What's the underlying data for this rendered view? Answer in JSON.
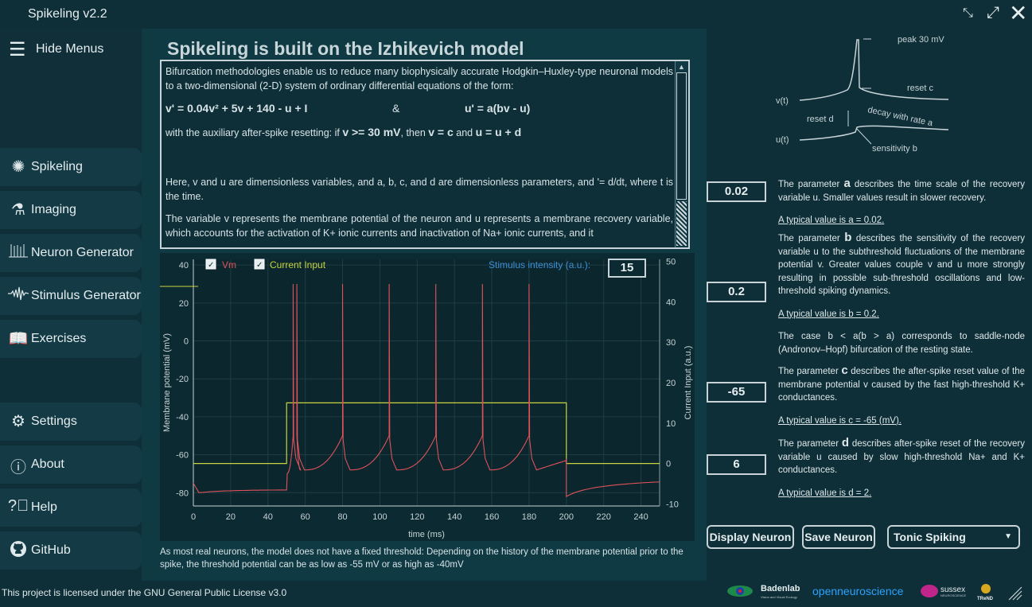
{
  "app": {
    "title": "Spikeling v2.2"
  },
  "sidebar": {
    "hide_menus": "Hide Menus",
    "items": [
      {
        "label": "Spikeling",
        "icon": "neuron-icon"
      },
      {
        "label": "Imaging",
        "icon": "microscope-icon"
      },
      {
        "label": "Neuron Generator",
        "icon": "spike-train-icon"
      },
      {
        "label": "Stimulus Generator",
        "icon": "waveform-icon"
      },
      {
        "label": "Exercises",
        "icon": "book-icon"
      },
      {
        "label": "Settings",
        "icon": "gear-icon"
      },
      {
        "label": "About",
        "icon": "info-icon"
      },
      {
        "label": "Help",
        "icon": "help-icon"
      },
      {
        "label": "GitHub",
        "icon": "github-icon"
      }
    ]
  },
  "main": {
    "heading": "Spikeling is built on the Izhikevich model",
    "text": {
      "p1": "Bifurcation methodologies enable us to reduce many biophysically accurate Hodgkin–Huxley-type neuronal models to a two-dimensional (2-D) system of ordinary differential equations of the form:",
      "eq1": "v' = 0.04v² + 5v + 140 - u + I",
      "amp": "&",
      "eq2": "u' = a(bv - u)",
      "p2_pre": "with the auxiliary after-spike resetting:   if ",
      "p2_cond": "v >= 30 mV",
      "p2_mid": ", then ",
      "p2_then": "v = c",
      "p2_and": " and ",
      "p2_then2": "u = u + d",
      "p3": "Here, v and u are dimensionless variables, and a, b, c, and d are dimensionless parameters, and '= d/dt, where t is the time.",
      "p4": "The variable v represents the membrane potential of the neuron and u represents a membrane recovery variable, which accounts for the activation of K+ ionic currents and inactivation of Na+ ionic currents, and it"
    },
    "footnote": "As most real neurons, the model does not have a fixed threshold: Depending on the history of the membrane potential prior to the spike, the threshold potential can be as low as -55 mV or as high as -40mV"
  },
  "plot": {
    "vm_label": "Vm",
    "ci_label": "Current Input",
    "stim_label": "Stimulus intensity (a.u.):",
    "stim_value": "15",
    "vm_color": "#e0525b",
    "ci_color": "#c7d43f"
  },
  "chart_data": {
    "type": "line",
    "xlabel": "time (ms)",
    "ylabel": "Membrane potential (mV)",
    "y2label": "Current Input (a.u.)",
    "xlim": [
      0,
      250
    ],
    "ylim": [
      -87,
      43
    ],
    "y2lim": [
      -10.5,
      50.5
    ],
    "xticks": [
      0,
      20,
      40,
      60,
      80,
      100,
      120,
      140,
      160,
      180,
      200,
      220,
      240
    ],
    "yticks": [
      40,
      20,
      0,
      -20,
      -40,
      -60,
      -80
    ],
    "y2ticks": [
      50,
      40,
      30,
      20,
      10,
      0,
      -10
    ],
    "grid": true,
    "series": [
      {
        "name": "Vm",
        "spike_times": [
          53.5,
          55.5,
          80,
          105,
          130,
          155,
          180
        ],
        "rest": -80,
        "peak": 30
      },
      {
        "name": "Current Input",
        "x": [
          0,
          50,
          50,
          200,
          200,
          250
        ],
        "y": [
          0,
          0,
          15,
          15,
          0,
          0
        ]
      }
    ]
  },
  "diagram": {
    "peak": "peak 30 mV",
    "reset_c": "reset  c",
    "vt": "v(t)",
    "reset_d": "reset  d",
    "decay": "decay with  rate  a",
    "ut": "u(t)",
    "sensitivity": "sensitivity  b"
  },
  "params": [
    {
      "value": "0.02",
      "letter": "a",
      "pre": "The parameter ",
      "post": " describes the time scale of the recovery variable u. Smaller values result in slower recovery.",
      "typical": "A typical value is a = 0.02."
    },
    {
      "value": "0.2",
      "letter": "b",
      "pre": "The parameter ",
      "post": " describes the sensitivity of the recovery variable u to the subthreshold fluctuations of the membrane potential v. Greater values couple v and u more strongly resulting in possible sub-threshold oscillations and low-threshold spiking dynamics.",
      "typical": "A typical value is b = 0.2.",
      "extra": "The case b < a(b > a) corresponds to saddle-node (Andronov–Hopf) bifurcation of the resting state."
    },
    {
      "value": "-65",
      "letter": "c",
      "pre": "The parameter ",
      "post": " describes the after-spike reset value of the membrane potential v caused by the fast high-threshold K+ conductances.",
      "typical": "A typical value is c = -65 (mV)."
    },
    {
      "value": "6",
      "letter": "d",
      "pre": "The parameter ",
      "post": " describes after-spike reset of the recovery variable u caused by slow high-threshold Na+ and K+ conductances.",
      "typical": "A typical value is d = 2."
    }
  ],
  "buttons": {
    "display": "Display Neuron",
    "save": "Save Neuron",
    "mode": "Tonic Spiking"
  },
  "footer": {
    "license": "This project is licensed under the GNU General Public License v3.0",
    "logos": {
      "badenlab": "Badenlab",
      "badenlab_sub": "Vision and Visual Ecology",
      "oneuro": "openneuroscience",
      "sussex": "sussex",
      "sussex_sub": "NEUROSCIENCE",
      "trend": "TReND"
    }
  }
}
